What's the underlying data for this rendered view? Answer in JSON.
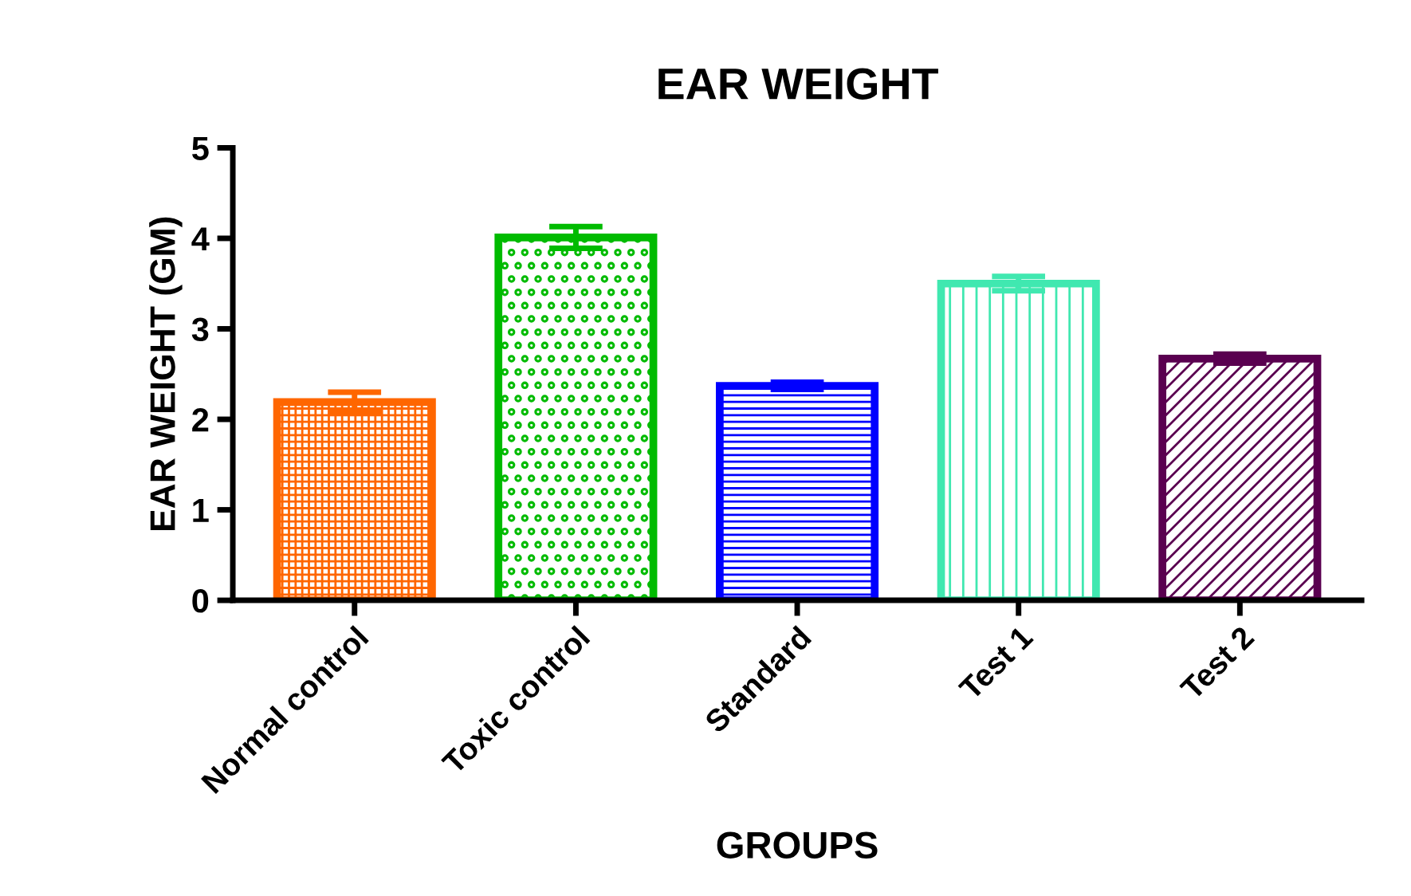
{
  "chart_data": {
    "type": "bar",
    "title": "EAR WEIGHT",
    "xlabel": "GROUPS",
    "ylabel": "EAR WEIGHT (GM)",
    "categories": [
      "Normal control",
      "Toxic control",
      "Standard",
      "Test 1",
      "Test 2"
    ],
    "values": [
      2.19,
      4.01,
      2.37,
      3.5,
      2.67
    ],
    "errors": [
      0.11,
      0.12,
      0.04,
      0.08,
      0.05
    ],
    "colors": [
      "#ff6600",
      "#00bb00",
      "#0000ff",
      "#40e8b0",
      "#5a0050"
    ],
    "ylim": [
      0,
      5
    ],
    "yticks": [
      0,
      1,
      2,
      3,
      4,
      5
    ],
    "grid": false,
    "legend": false
  }
}
